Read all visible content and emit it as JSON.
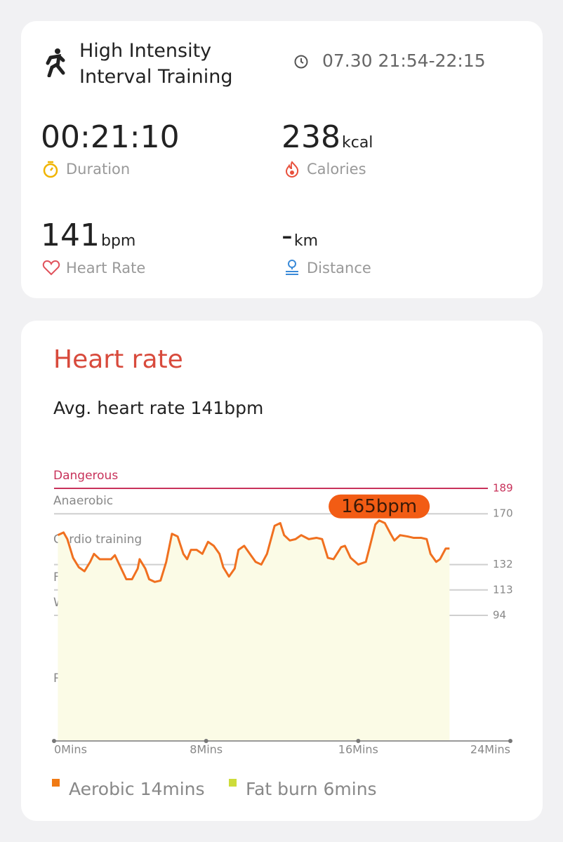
{
  "workout": {
    "title": "High Intensity Interval Training",
    "time": "07.30 21:54-22:15",
    "stats": [
      {
        "value": "00:21:10",
        "label": "Duration"
      },
      {
        "value": "238",
        "unit": "kcal",
        "label": "Calories"
      },
      {
        "value": "141",
        "unit": "bpm",
        "label": "Heart Rate"
      },
      {
        "value": "-",
        "unit": "km",
        "label": "Distance"
      }
    ]
  },
  "heart_rate": {
    "heading": "Heart rate",
    "average": "Avg. heart rate 141bpm"
  },
  "chart_data": {
    "type": "line",
    "zones": [
      "Dangerous",
      "Anaerobic",
      "Cardio training",
      "Fat burning",
      "Warm up",
      "Resting"
    ],
    "x": [
      0.2,
      0.5,
      0.7,
      1.0,
      1.3,
      1.6,
      1.9,
      2.1,
      2.4,
      2.7,
      3.0,
      3.2,
      3.5,
      3.8,
      4.1,
      4.4,
      4.5,
      4.8,
      5.0,
      5.3,
      5.6,
      5.9,
      6.2,
      6.5,
      6.8,
      7.0,
      7.2,
      7.5,
      7.8,
      8.1,
      8.4,
      8.7,
      8.9,
      9.2,
      9.5,
      9.7,
      10.0,
      10.3,
      10.6,
      10.9,
      11.2,
      11.6,
      11.9,
      12.1,
      12.4,
      12.7,
      13.0,
      13.4,
      13.8,
      14.1,
      14.4,
      14.7,
      15.1,
      15.3,
      15.6,
      16.0,
      16.4,
      16.6,
      16.9,
      17.1,
      17.4,
      17.7,
      17.9,
      18.2,
      18.6,
      18.9,
      19.3,
      19.6,
      19.8,
      20.1,
      20.3,
      20.6,
      20.8
    ],
    "values": [
      154,
      156,
      151,
      137,
      130,
      127,
      134,
      140,
      136,
      136,
      136,
      139,
      130,
      121,
      121,
      129,
      136,
      129,
      121,
      119,
      120,
      134,
      155,
      153,
      140,
      136,
      143,
      143,
      140,
      149,
      146,
      140,
      130,
      123,
      129,
      143,
      146,
      140,
      134,
      132,
      140,
      161,
      163,
      154,
      150,
      151,
      154,
      151,
      152,
      151,
      137,
      136,
      145,
      146,
      137,
      132,
      134,
      145,
      162,
      165,
      163,
      155,
      150,
      154,
      153,
      152,
      152,
      151,
      140,
      134,
      136,
      144,
      144
    ],
    "color": "#f07020",
    "fill_color": "#fbfbe6",
    "peak_label": "165bpm",
    "peak_color": "#f25c14",
    "xlim": [
      0,
      24
    ],
    "xticks": [
      {
        "value": 0,
        "label": "0Mins"
      },
      {
        "value": 8,
        "label": "8Mins"
      },
      {
        "value": 16,
        "label": "16Mins"
      },
      {
        "value": 24,
        "label": "24Mins"
      }
    ],
    "ylim": [
      0,
      189
    ],
    "yticks": [
      94,
      113,
      132,
      170,
      189
    ],
    "grid": true,
    "grid_color": "#cfcfcf",
    "limit_color": "#c8325a",
    "legend": [
      {
        "name": "Aerobic 14mins",
        "color": "#f07a14"
      },
      {
        "name": "Fat burn 6mins",
        "color": "#cddc3a"
      }
    ]
  }
}
